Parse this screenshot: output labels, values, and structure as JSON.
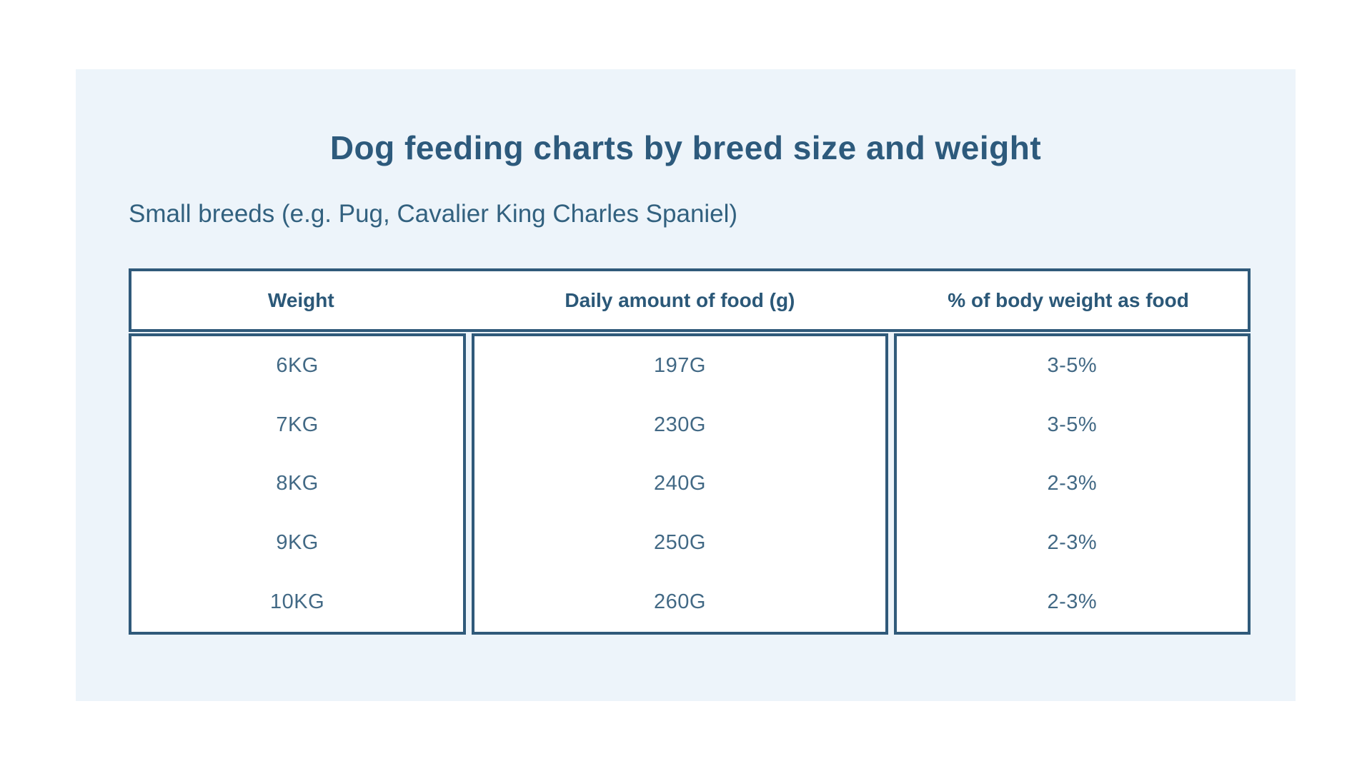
{
  "header": {
    "title": "Dog feeding charts by breed size and weight",
    "subtitle": "Small breeds (e.g. Pug, Cavalier King Charles Spaniel)"
  },
  "chart_data": {
    "type": "table",
    "title": "Dog feeding charts by breed size and weight",
    "subtitle": "Small breeds (e.g. Pug, Cavalier King Charles Spaniel)",
    "columns": [
      "Weight",
      "Daily amount of food (g)",
      "% of body weight as food"
    ],
    "rows": [
      [
        "6KG",
        "197G",
        "3-5%"
      ],
      [
        "7KG",
        "230G",
        "3-5%"
      ],
      [
        "8KG",
        "240G",
        "2-3%"
      ],
      [
        "9KG",
        "250G",
        "2-3%"
      ],
      [
        "10KG",
        "260G",
        "2-3%"
      ]
    ],
    "layout_hints": {
      "header_row": "single bordered box, labels bold and centered per column",
      "body": "three bordered column boxes with thin gaps forming double-line dividers",
      "grid": "no horizontal lines between data rows"
    }
  },
  "colors": {
    "page_background": "#ffffff",
    "panel_background": "#edf4fa",
    "table_border": "#305a7a",
    "title_text": "#2d5a7c",
    "subtitle_text": "#32617f",
    "header_text": "#2b5878",
    "cell_text": "#426985",
    "cell_background": "#ffffff"
  }
}
